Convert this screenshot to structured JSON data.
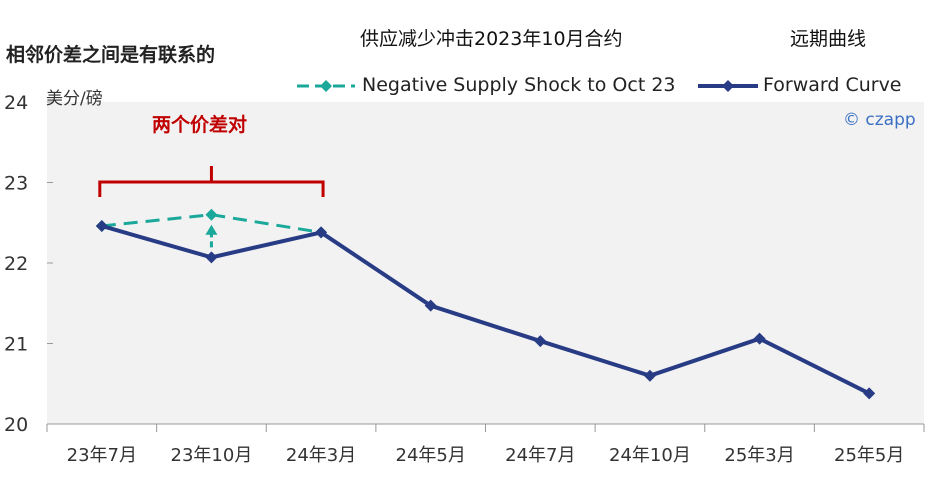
{
  "left_title": "相邻价差之间是有联系的",
  "watermark": "© czapp",
  "colors": {
    "forward": "#283b85",
    "negative": "#1aa89a",
    "annotation": "#c00000",
    "plot_bg": "#f2f2f2"
  },
  "chart_data": {
    "type": "line",
    "title": "供应减少冲击2023年10月合约",
    "subtitle": "远期曲线",
    "ylabel": "美分/磅",
    "xlabel": "",
    "ylim": [
      20,
      24
    ],
    "yticks": [
      20,
      21,
      22,
      23,
      24
    ],
    "grid": false,
    "legend_position": "top",
    "categories": [
      "23年7月",
      "23年10月",
      "24年3月",
      "24年5月",
      "24年7月",
      "24年10月",
      "25年3月",
      "25年5月"
    ],
    "series": [
      {
        "name": "Negative Supply Shock to Oct 23",
        "style": "dashed",
        "values": [
          22.46,
          22.6,
          22.38,
          null,
          null,
          null,
          null,
          null
        ]
      },
      {
        "name": "Forward Curve",
        "style": "solid",
        "values": [
          22.46,
          22.07,
          22.38,
          21.47,
          21.03,
          20.6,
          21.06,
          20.38
        ]
      }
    ],
    "annotations": [
      {
        "text": "两个价差对",
        "span": [
          "23年7月",
          "24年3月"
        ]
      }
    ]
  }
}
